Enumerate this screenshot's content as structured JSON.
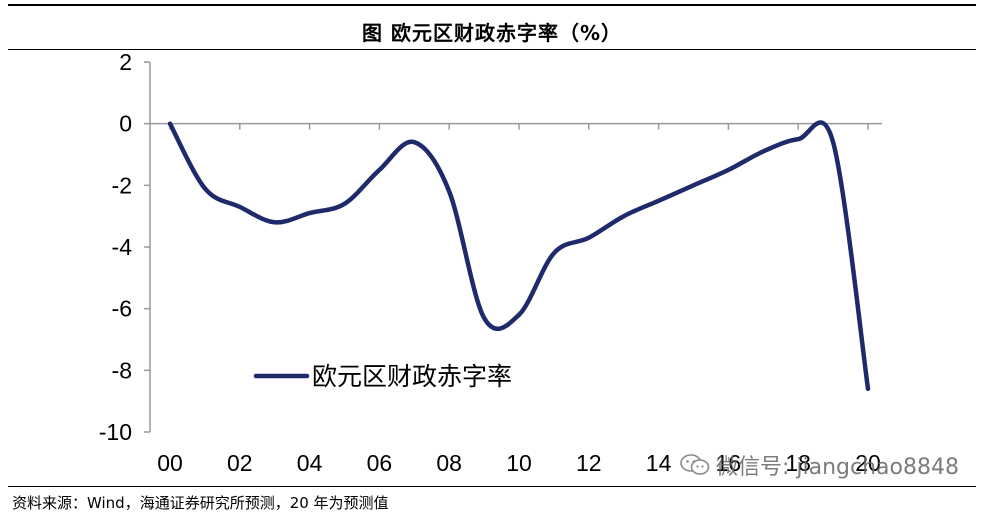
{
  "title": "图  欧元区财政赤字率（%）",
  "source": "资料来源：Wind，海通证券研究所预测，20 年为预测值",
  "watermark": "微信号: jiangchao8848",
  "chart_data": {
    "type": "line",
    "title": "图  欧元区财政赤字率（%）",
    "xlabel": "",
    "ylabel": "",
    "x_ticks": [
      "00",
      "02",
      "04",
      "06",
      "08",
      "10",
      "12",
      "14",
      "16",
      "18",
      "20"
    ],
    "y_ticks": [
      2,
      0,
      -2,
      -4,
      -6,
      -8,
      -10
    ],
    "ylim": [
      -10,
      2
    ],
    "xlim": [
      2000,
      2020
    ],
    "grid": false,
    "legend_position": "lower-left",
    "series": [
      {
        "name": "欧元区财政赤字率",
        "color": "#1f2a6b",
        "x": [
          2000,
          2001,
          2002,
          2003,
          2004,
          2005,
          2006,
          2007,
          2008,
          2009,
          2010,
          2011,
          2012,
          2013,
          2014,
          2015,
          2016,
          2017,
          2018,
          2019,
          2020
        ],
        "y": [
          0.0,
          -2.1,
          -2.7,
          -3.2,
          -2.9,
          -2.6,
          -1.5,
          -0.6,
          -2.2,
          -6.3,
          -6.2,
          -4.2,
          -3.7,
          -3.0,
          -2.5,
          -2.0,
          -1.5,
          -0.9,
          -0.5,
          -0.6,
          -8.6
        ]
      }
    ]
  }
}
